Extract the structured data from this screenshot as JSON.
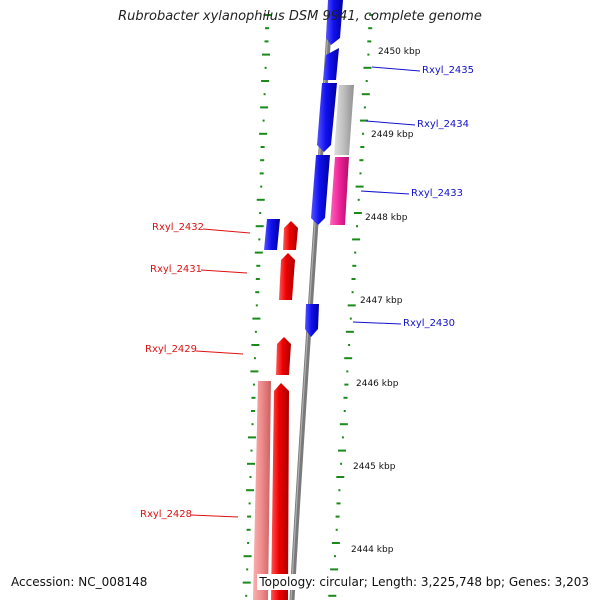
{
  "title": "Rubrobacter xylanophilus DSM 9941, complete genome",
  "footer": {
    "accession": "Accession: NC_008148",
    "summary": "Topology: circular; Length: 3,225,748 bp; Genes: 3,203"
  },
  "colors": {
    "backbone": "#7a7a7a",
    "forward_gene": "#ee0000",
    "forward_gene_light": "#f08888",
    "reverse_gene": "#1010ee",
    "reverse_gene_light": "#b8b8b8",
    "reverse_gene_pink": "#ee2299",
    "gc_ticks": "#1a8a1a",
    "forward_label": "#dd1111",
    "reverse_label": "#1111cc"
  },
  "position_ticks": [
    {
      "label": "2450 kbp"
    },
    {
      "label": "2449 kbp"
    },
    {
      "label": "2448 kbp"
    },
    {
      "label": "2447 kbp"
    },
    {
      "label": "2446 kbp"
    },
    {
      "label": "2445 kbp"
    },
    {
      "label": "2444 kbp"
    }
  ],
  "genes": [
    {
      "name": "Rxyl_2435",
      "strand": "reverse"
    },
    {
      "name": "Rxyl_2434",
      "strand": "reverse"
    },
    {
      "name": "Rxyl_2433",
      "strand": "reverse"
    },
    {
      "name": "Rxyl_2432",
      "strand": "forward"
    },
    {
      "name": "Rxyl_2431",
      "strand": "forward"
    },
    {
      "name": "Rxyl_2430",
      "strand": "reverse"
    },
    {
      "name": "Rxyl_2429",
      "strand": "forward"
    },
    {
      "name": "Rxyl_2428",
      "strand": "forward"
    }
  ]
}
